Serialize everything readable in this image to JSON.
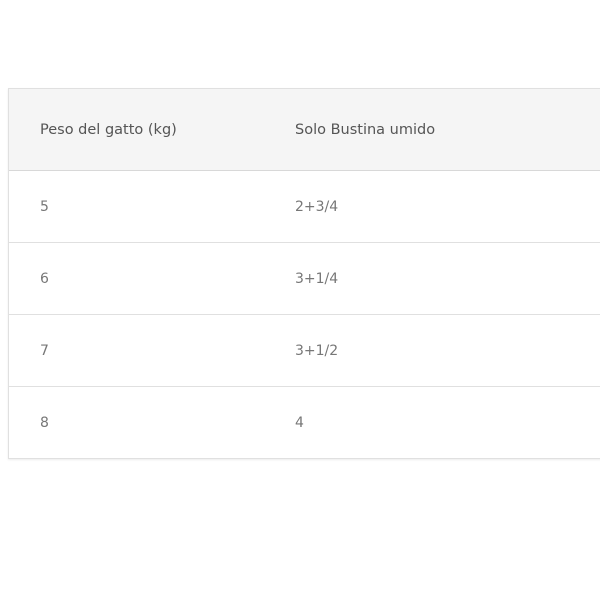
{
  "table": {
    "headers": [
      "Peso del gatto (kg)",
      "Solo Bustina umido"
    ],
    "rows": [
      [
        "5",
        "2+3/4"
      ],
      [
        "6",
        "3+1/4"
      ],
      [
        "7",
        "3+1/2"
      ],
      [
        "8",
        "4"
      ]
    ]
  }
}
